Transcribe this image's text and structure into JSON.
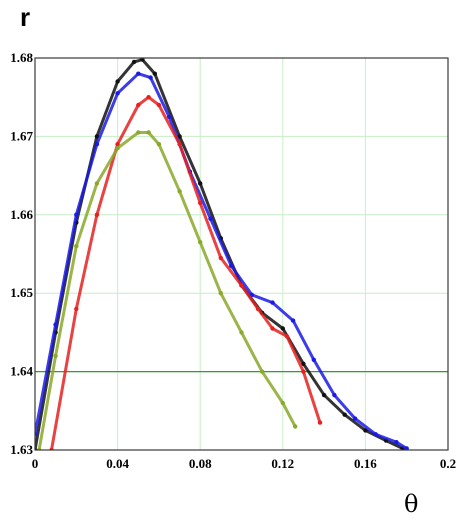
{
  "chart_data": {
    "type": "scatter",
    "title": "",
    "xlabel": "θ",
    "ylabel": "r",
    "xlim": [
      0,
      0.2
    ],
    "ylim": [
      1.63,
      1.68
    ],
    "xticks": [
      "0",
      "0.04",
      "0.08",
      "0.12",
      "0.16",
      "0.2"
    ],
    "yticks": [
      "1.63",
      "1.64",
      "1.65",
      "1.66",
      "1.67",
      "1.68"
    ],
    "highlight_line": {
      "y": 1.64,
      "color": "#2e9e2e"
    },
    "grid": true,
    "series": [
      {
        "color": "#111111",
        "x": [
          0.0,
          0.01,
          0.02,
          0.03,
          0.04,
          0.048,
          0.052,
          0.058,
          0.07,
          0.08,
          0.09,
          0.1,
          0.11,
          0.12,
          0.13,
          0.14,
          0.15,
          0.16,
          0.17,
          0.178
        ],
        "y": [
          1.63,
          1.645,
          1.659,
          1.67,
          1.677,
          1.6795,
          1.6798,
          1.678,
          1.67,
          1.664,
          1.657,
          1.651,
          1.6475,
          1.6455,
          1.641,
          1.637,
          1.6345,
          1.6325,
          1.6312,
          1.6302
        ]
      },
      {
        "color": "#1a1ae6",
        "x": [
          0.0,
          0.01,
          0.02,
          0.03,
          0.04,
          0.05,
          0.056,
          0.065,
          0.075,
          0.085,
          0.095,
          0.105,
          0.115,
          0.125,
          0.135,
          0.145,
          0.155,
          0.165,
          0.175,
          0.18
        ],
        "y": [
          1.632,
          1.646,
          1.66,
          1.669,
          1.6755,
          1.678,
          1.6775,
          1.6725,
          1.6655,
          1.6595,
          1.6535,
          1.6498,
          1.6488,
          1.6465,
          1.6415,
          1.637,
          1.634,
          1.632,
          1.631,
          1.6302
        ]
      },
      {
        "color": "#e62020",
        "x": [
          0.008,
          0.02,
          0.03,
          0.04,
          0.05,
          0.055,
          0.06,
          0.07,
          0.08,
          0.09,
          0.1,
          0.108,
          0.115,
          0.122,
          0.13,
          0.138
        ],
        "y": [
          1.63,
          1.648,
          1.66,
          1.669,
          1.674,
          1.675,
          1.674,
          1.669,
          1.6615,
          1.6545,
          1.651,
          1.648,
          1.6455,
          1.6445,
          1.64,
          1.6335
        ]
      },
      {
        "color": "#8aa82a",
        "x": [
          0.002,
          0.01,
          0.02,
          0.03,
          0.04,
          0.05,
          0.055,
          0.06,
          0.07,
          0.08,
          0.09,
          0.1,
          0.11,
          0.12,
          0.126
        ],
        "y": [
          1.63,
          1.642,
          1.656,
          1.664,
          1.6685,
          1.6705,
          1.6705,
          1.669,
          1.663,
          1.6565,
          1.65,
          1.645,
          1.64,
          1.636,
          1.633
        ]
      }
    ]
  }
}
